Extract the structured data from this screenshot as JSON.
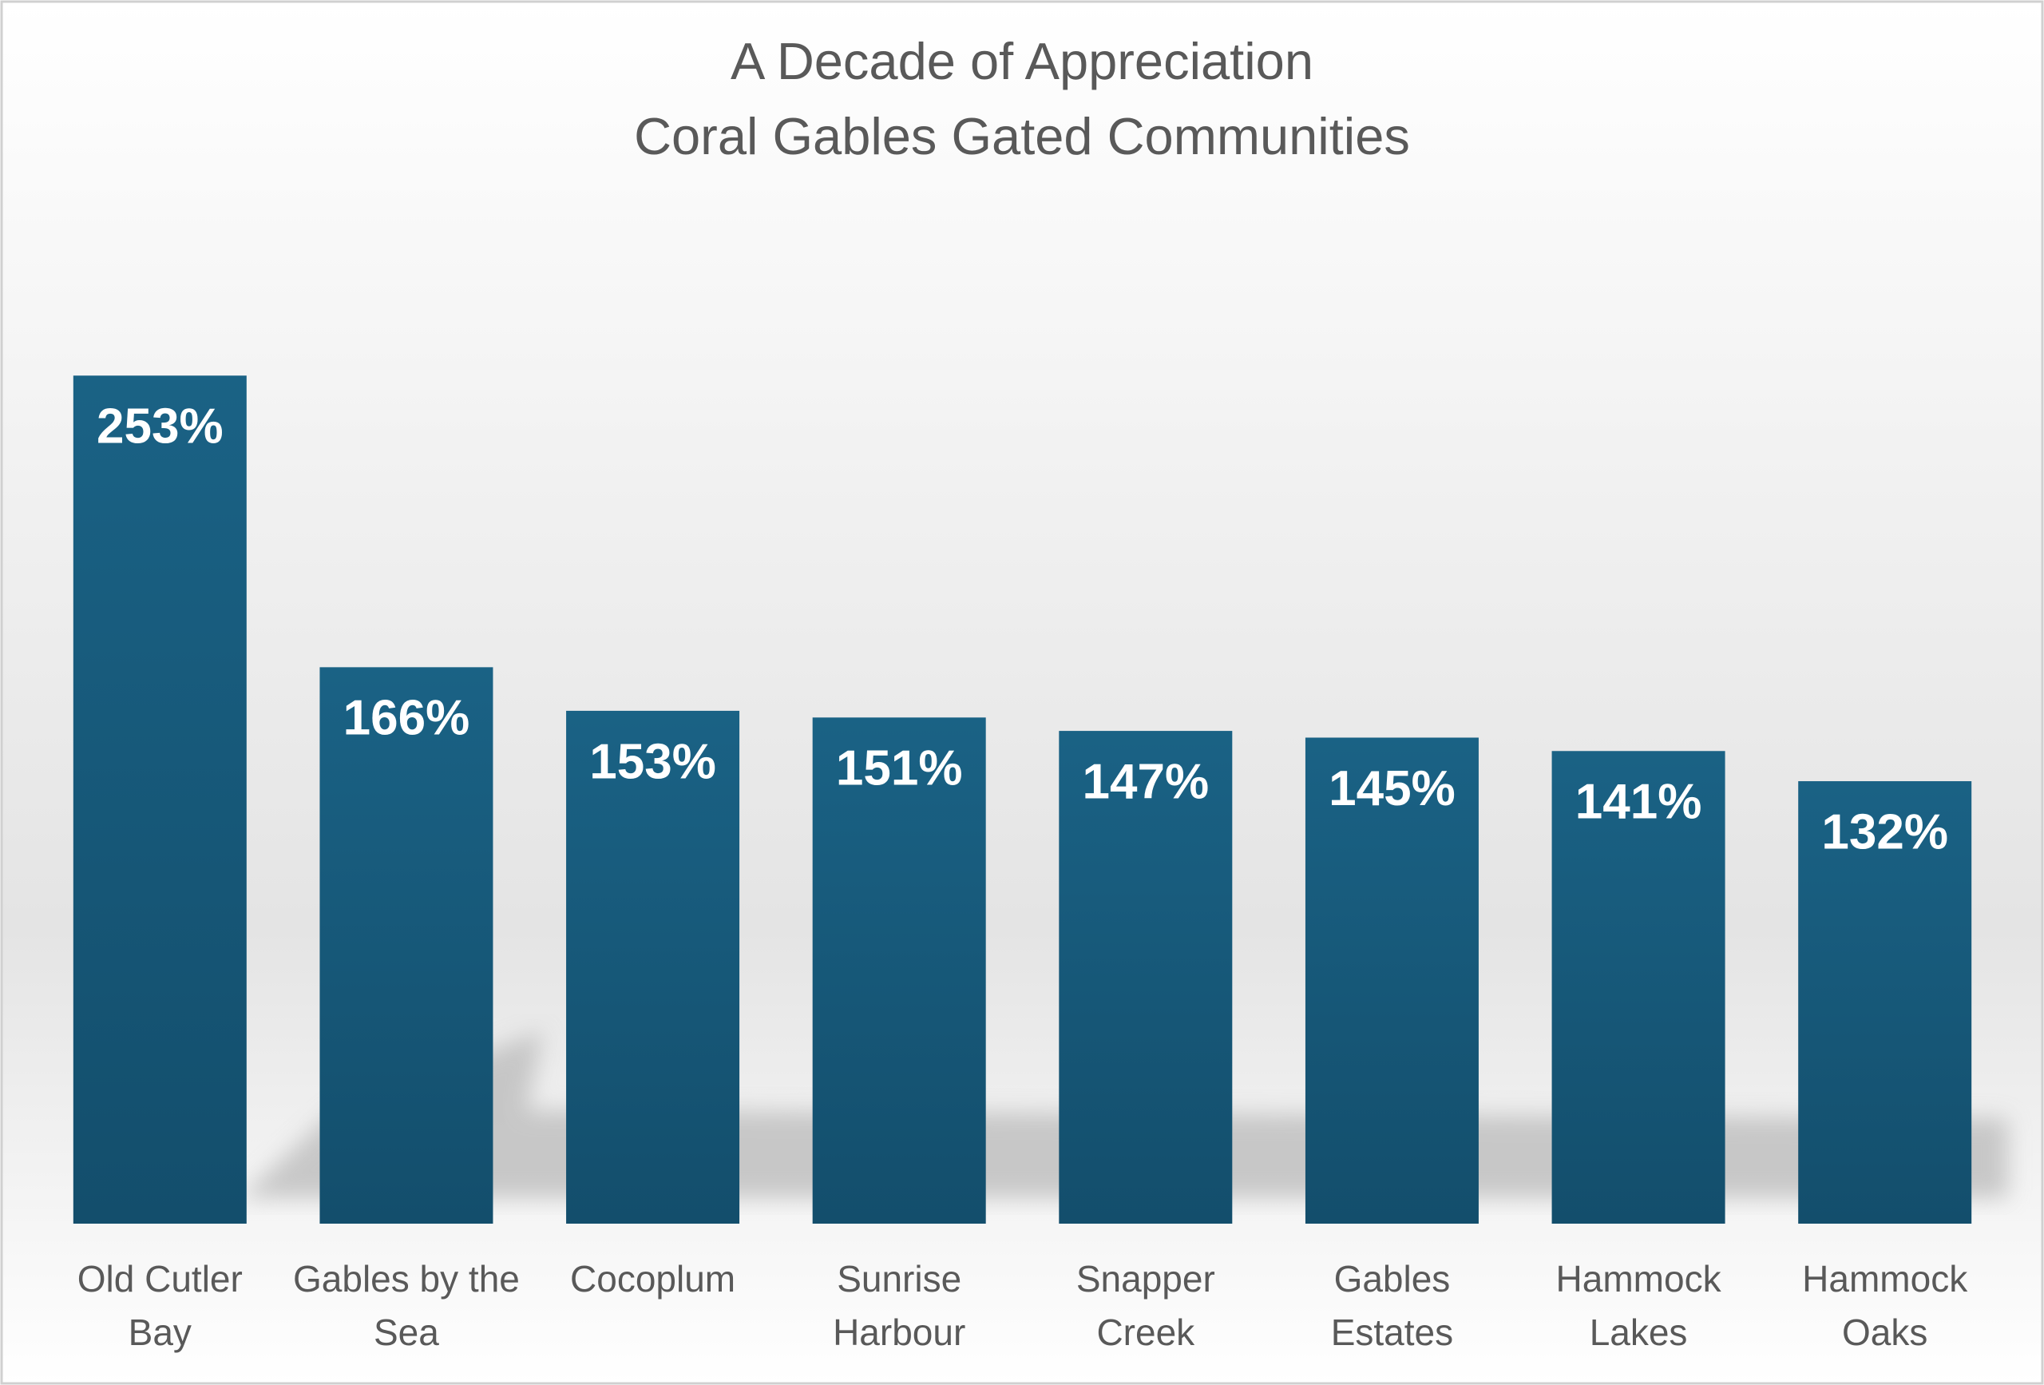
{
  "chart_data": {
    "type": "bar",
    "title": "A Decade of Appreciation",
    "subtitle": "Coral Gables Gated Communities",
    "categories": [
      "Old Cutler Bay",
      "Gables by the Sea",
      "Cocoplum",
      "Sunrise Harbour",
      "Snapper Creek",
      "Gables Estates",
      "Hammock Lakes",
      "Hammock Oaks"
    ],
    "values": [
      253,
      166,
      153,
      151,
      147,
      145,
      141,
      132
    ],
    "value_labels": [
      "253%",
      "166%",
      "153%",
      "151%",
      "147%",
      "145%",
      "141%",
      "132%"
    ],
    "color": "#175b7c",
    "ylim": [
      0,
      300
    ]
  }
}
